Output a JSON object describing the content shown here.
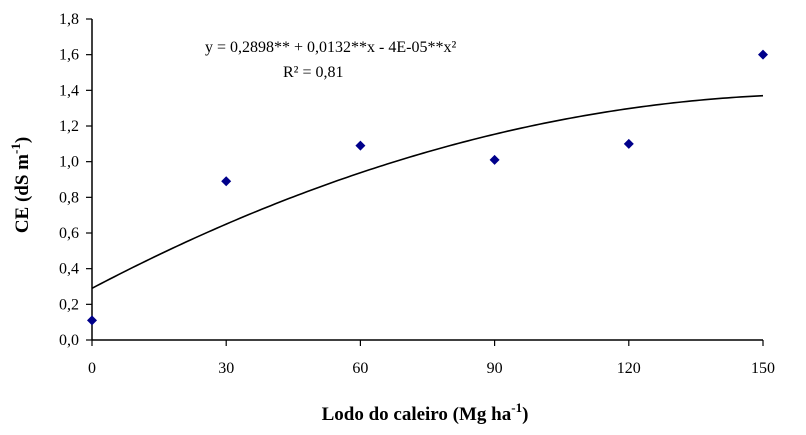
{
  "chart_data": {
    "type": "scatter",
    "xlabel": "Lodo do caleiro (Mg ha",
    "xlabel_sup": "-1",
    "xlabel_close": ")",
    "ylabel": "CE (dS m",
    "ylabel_sup": "-1",
    "ylabel_close": ")",
    "xlim": [
      0,
      150
    ],
    "ylim": [
      0,
      1.8
    ],
    "x_ticks": [
      0,
      30,
      60,
      90,
      120,
      150
    ],
    "x_tick_labels": [
      "0",
      "30",
      "60",
      "90",
      "120",
      "150"
    ],
    "y_ticks": [
      0,
      0.2,
      0.4,
      0.6,
      0.8,
      1.0,
      1.2,
      1.4,
      1.6,
      1.8
    ],
    "y_tick_labels": [
      "0,0",
      "0,2",
      "0,4",
      "0,6",
      "0,8",
      "1,0",
      "1,2",
      "1,4",
      "1,6",
      "1,8"
    ],
    "grid": false,
    "marker_color": "#00008b",
    "line_color": "#000000",
    "series": [
      {
        "type": "scatter",
        "x": [
          0,
          30,
          60,
          90,
          120,
          150
        ],
        "y": [
          0.11,
          0.89,
          1.09,
          1.01,
          1.1,
          1.6
        ]
      }
    ],
    "trendline": {
      "type": "polynomial",
      "coefficients": [
        0.2898,
        0.0132,
        -4e-05
      ],
      "equation": "y = 0,2898** + 0,0132**x  - 4E-05**x²",
      "r2_label": "R² = 0,81"
    }
  }
}
